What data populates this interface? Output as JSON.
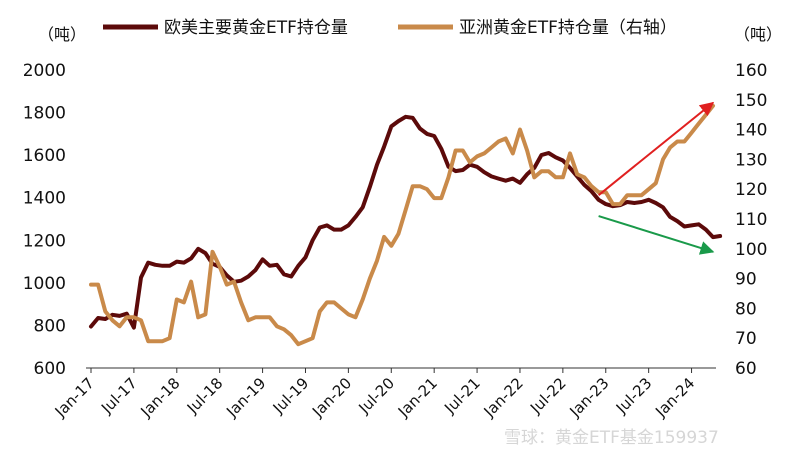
{
  "chart_data": {
    "type": "line",
    "legend": {
      "placement": "top"
    },
    "left_axis": {
      "unit": "（吨）",
      "ylim": [
        600,
        2000
      ],
      "ticks": [
        600,
        800,
        1000,
        1200,
        1400,
        1600,
        1800,
        2000
      ]
    },
    "right_axis": {
      "unit": "（吨）",
      "ylim": [
        60,
        160
      ],
      "ticks": [
        60,
        70,
        80,
        90,
        100,
        110,
        120,
        130,
        140,
        150,
        160
      ]
    },
    "x_tick_labels": [
      "Jan-17",
      "Jul-17",
      "Jan-18",
      "Jul-18",
      "Jan-19",
      "Jul-19",
      "Jan-20",
      "Jul-20",
      "Jan-21",
      "Jul-21",
      "Jan-22",
      "Jul-22",
      "Jan-23",
      "Jul-23",
      "Jan-24"
    ],
    "x_range": [
      "2017-01",
      "2024-04"
    ],
    "series": [
      {
        "name": "欧美主要黄金ETF持仓量",
        "axis": "left",
        "color": "#5c0a0a",
        "points": [
          [
            "2017-01",
            795
          ],
          [
            "2017-02",
            835
          ],
          [
            "2017-03",
            830
          ],
          [
            "2017-04",
            850
          ],
          [
            "2017-05",
            845
          ],
          [
            "2017-06",
            855
          ],
          [
            "2017-07",
            790
          ],
          [
            "2017-08",
            1025
          ],
          [
            "2017-09",
            1095
          ],
          [
            "2017-10",
            1085
          ],
          [
            "2017-11",
            1080
          ],
          [
            "2017-12",
            1080
          ],
          [
            "2018-01",
            1100
          ],
          [
            "2018-02",
            1095
          ],
          [
            "2018-03",
            1115
          ],
          [
            "2018-04",
            1160
          ],
          [
            "2018-05",
            1140
          ],
          [
            "2018-06",
            1090
          ],
          [
            "2018-07",
            1075
          ],
          [
            "2018-08",
            1035
          ],
          [
            "2018-09",
            1005
          ],
          [
            "2018-10",
            1010
          ],
          [
            "2018-11",
            1030
          ],
          [
            "2018-12",
            1060
          ],
          [
            "2019-01",
            1110
          ],
          [
            "2019-02",
            1080
          ],
          [
            "2019-03",
            1085
          ],
          [
            "2019-04",
            1040
          ],
          [
            "2019-05",
            1030
          ],
          [
            "2019-06",
            1080
          ],
          [
            "2019-07",
            1120
          ],
          [
            "2019-08",
            1200
          ],
          [
            "2019-09",
            1260
          ],
          [
            "2019-10",
            1270
          ],
          [
            "2019-11",
            1250
          ],
          [
            "2019-12",
            1250
          ],
          [
            "2020-01",
            1270
          ],
          [
            "2020-02",
            1310
          ],
          [
            "2020-03",
            1355
          ],
          [
            "2020-04",
            1450
          ],
          [
            "2020-05",
            1555
          ],
          [
            "2020-06",
            1640
          ],
          [
            "2020-07",
            1735
          ],
          [
            "2020-08",
            1760
          ],
          [
            "2020-09",
            1780
          ],
          [
            "2020-10",
            1775
          ],
          [
            "2020-11",
            1725
          ],
          [
            "2020-12",
            1700
          ],
          [
            "2021-01",
            1690
          ],
          [
            "2021-02",
            1630
          ],
          [
            "2021-03",
            1545
          ],
          [
            "2021-04",
            1525
          ],
          [
            "2021-05",
            1530
          ],
          [
            "2021-06",
            1555
          ],
          [
            "2021-07",
            1545
          ],
          [
            "2021-08",
            1520
          ],
          [
            "2021-09",
            1500
          ],
          [
            "2021-10",
            1490
          ],
          [
            "2021-11",
            1480
          ],
          [
            "2021-12",
            1490
          ],
          [
            "2022-01",
            1470
          ],
          [
            "2022-02",
            1510
          ],
          [
            "2022-03",
            1540
          ],
          [
            "2022-04",
            1600
          ],
          [
            "2022-05",
            1610
          ],
          [
            "2022-06",
            1590
          ],
          [
            "2022-07",
            1575
          ],
          [
            "2022-08",
            1540
          ],
          [
            "2022-09",
            1500
          ],
          [
            "2022-10",
            1460
          ],
          [
            "2022-11",
            1430
          ],
          [
            "2022-12",
            1390
          ],
          [
            "2023-01",
            1370
          ],
          [
            "2023-02",
            1360
          ],
          [
            "2023-03",
            1365
          ],
          [
            "2023-04",
            1380
          ],
          [
            "2023-05",
            1375
          ],
          [
            "2023-06",
            1380
          ],
          [
            "2023-07",
            1390
          ],
          [
            "2023-08",
            1375
          ],
          [
            "2023-09",
            1355
          ],
          [
            "2023-10",
            1310
          ],
          [
            "2023-11",
            1290
          ],
          [
            "2023-12",
            1265
          ],
          [
            "2024-01",
            1270
          ],
          [
            "2024-02",
            1275
          ],
          [
            "2024-03",
            1250
          ],
          [
            "2024-04",
            1215
          ],
          [
            "2024-05",
            1220
          ]
        ]
      },
      {
        "name": "亚洲黄金ETF持仓量（右轴）",
        "axis": "right",
        "color": "#c98a4a",
        "points": [
          [
            "2017-01",
            88
          ],
          [
            "2017-02",
            88
          ],
          [
            "2017-03",
            79
          ],
          [
            "2017-04",
            76
          ],
          [
            "2017-05",
            74
          ],
          [
            "2017-06",
            77
          ],
          [
            "2017-07",
            77
          ],
          [
            "2017-08",
            76
          ],
          [
            "2017-09",
            69
          ],
          [
            "2017-10",
            69
          ],
          [
            "2017-11",
            69
          ],
          [
            "2017-12",
            70
          ],
          [
            "2018-01",
            83
          ],
          [
            "2018-02",
            82
          ],
          [
            "2018-03",
            89
          ],
          [
            "2018-04",
            77
          ],
          [
            "2018-05",
            78
          ],
          [
            "2018-06",
            99
          ],
          [
            "2018-07",
            94
          ],
          [
            "2018-08",
            88
          ],
          [
            "2018-09",
            89
          ],
          [
            "2018-10",
            82
          ],
          [
            "2018-11",
            76
          ],
          [
            "2018-12",
            77
          ],
          [
            "2019-01",
            77
          ],
          [
            "2019-02",
            77
          ],
          [
            "2019-03",
            74
          ],
          [
            "2019-04",
            73
          ],
          [
            "2019-05",
            71
          ],
          [
            "2019-06",
            68
          ],
          [
            "2019-07",
            69
          ],
          [
            "2019-08",
            70
          ],
          [
            "2019-09",
            79
          ],
          [
            "2019-10",
            82
          ],
          [
            "2019-11",
            82
          ],
          [
            "2019-12",
            80
          ],
          [
            "2020-01",
            78
          ],
          [
            "2020-02",
            77
          ],
          [
            "2020-03",
            83
          ],
          [
            "2020-04",
            90
          ],
          [
            "2020-05",
            96
          ],
          [
            "2020-06",
            104
          ],
          [
            "2020-07",
            101
          ],
          [
            "2020-08",
            105
          ],
          [
            "2020-09",
            113
          ],
          [
            "2020-10",
            121
          ],
          [
            "2020-11",
            121
          ],
          [
            "2020-12",
            120
          ],
          [
            "2021-01",
            117
          ],
          [
            "2021-02",
            117
          ],
          [
            "2021-03",
            124
          ],
          [
            "2021-04",
            133
          ],
          [
            "2021-05",
            133
          ],
          [
            "2021-06",
            129
          ],
          [
            "2021-07",
            131
          ],
          [
            "2021-08",
            132
          ],
          [
            "2021-09",
            134
          ],
          [
            "2021-10",
            136
          ],
          [
            "2021-11",
            137
          ],
          [
            "2021-12",
            132
          ],
          [
            "2022-01",
            140
          ],
          [
            "2022-02",
            133
          ],
          [
            "2022-03",
            124
          ],
          [
            "2022-04",
            126
          ],
          [
            "2022-05",
            126
          ],
          [
            "2022-06",
            124
          ],
          [
            "2022-07",
            124
          ],
          [
            "2022-08",
            132
          ],
          [
            "2022-09",
            125
          ],
          [
            "2022-10",
            124
          ],
          [
            "2022-11",
            121
          ],
          [
            "2022-12",
            119
          ],
          [
            "2023-01",
            119
          ],
          [
            "2023-02",
            115
          ],
          [
            "2023-03",
            115
          ],
          [
            "2023-04",
            118
          ],
          [
            "2023-05",
            118
          ],
          [
            "2023-06",
            118
          ],
          [
            "2023-07",
            120
          ],
          [
            "2023-08",
            122
          ],
          [
            "2023-09",
            130
          ],
          [
            "2023-10",
            134
          ],
          [
            "2023-11",
            136
          ],
          [
            "2023-12",
            136
          ],
          [
            "2024-01",
            139
          ],
          [
            "2024-02",
            142
          ],
          [
            "2024-03",
            145
          ],
          [
            "2024-04",
            148
          ]
        ]
      }
    ],
    "annotations": [
      {
        "type": "arrow",
        "color": "#e02020",
        "from": [
          "2022-12",
          118
        ],
        "to": [
          "2024-04",
          149
        ]
      },
      {
        "type": "arrow",
        "color": "#1a9a4a",
        "from": [
          "2022-12",
          111
        ],
        "to": [
          "2024-04",
          99
        ]
      }
    ]
  },
  "watermark": {
    "text": "雪球：黄金ETF基金159937"
  }
}
